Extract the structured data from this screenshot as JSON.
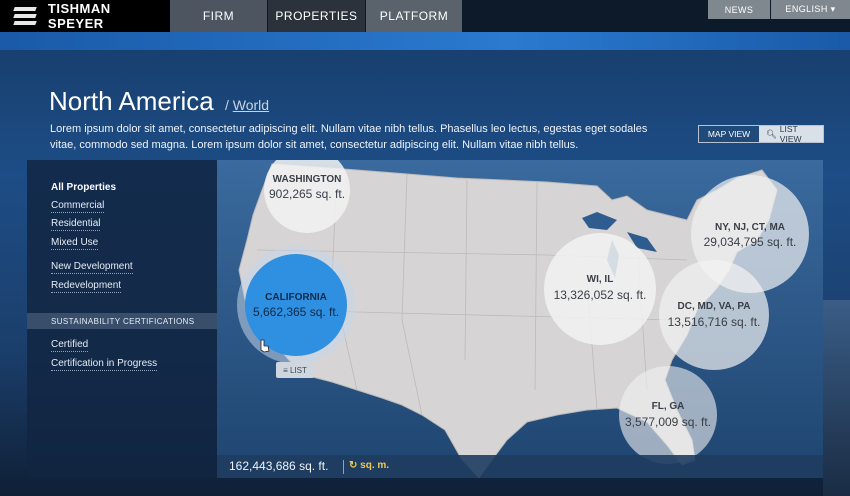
{
  "brand": {
    "name": "TISHMAN SPEYER"
  },
  "nav": {
    "firm": "FIRM",
    "properties": "PROPERTIES",
    "platform": "PLATFORM"
  },
  "utility": {
    "news": "NEWS",
    "language": "ENGLISH ▾"
  },
  "header": {
    "title": "North America",
    "slash": "/",
    "world_link": "World",
    "description": "Lorem ipsum dolor sit amet, consectetur adipiscing elit. Nullam vitae nibh tellus. Phasellus leo lectus, egestas eget sodales vitae, commodo sed magna. Lorem ipsum dolor sit amet, consectetur adipiscing elit. Nullam vitae nibh tellus."
  },
  "view_toggle": {
    "map": "MAP VIEW",
    "list": "LIST VIEW"
  },
  "sidebar": {
    "all": "All Properties",
    "types": [
      "Commercial",
      "Residential",
      "Mixed Use"
    ],
    "dev": [
      "New Development",
      "Redevelopment"
    ],
    "cert_header": "SUSTAINABILITY CERTIFICATIONS",
    "certs": [
      "Certified",
      "Certification in Progress"
    ]
  },
  "regions": [
    {
      "name": "WASHINGTON",
      "area": "902,265 sq. ft."
    },
    {
      "name": "CALIFORNIA",
      "area": "5,662,365 sq. ft."
    },
    {
      "name": "WI, IL",
      "area": "13,326,052 sq. ft."
    },
    {
      "name": "NY, NJ, CT, MA",
      "area": "29,034,795 sq. ft."
    },
    {
      "name": "DC, MD, VA, PA",
      "area": "13,516,716 sq. ft."
    },
    {
      "name": "FL, GA",
      "area": "3,577,009 sq. ft."
    }
  ],
  "map": {
    "list_button": "≡ LIST"
  },
  "footer": {
    "total": "162,443,686 sq. ft.",
    "unit_toggle": "↻ sq. m."
  },
  "colors": {
    "accent": "#2f8fe0",
    "map_land": "#d6d4d4",
    "gold": "#f2c94c"
  }
}
